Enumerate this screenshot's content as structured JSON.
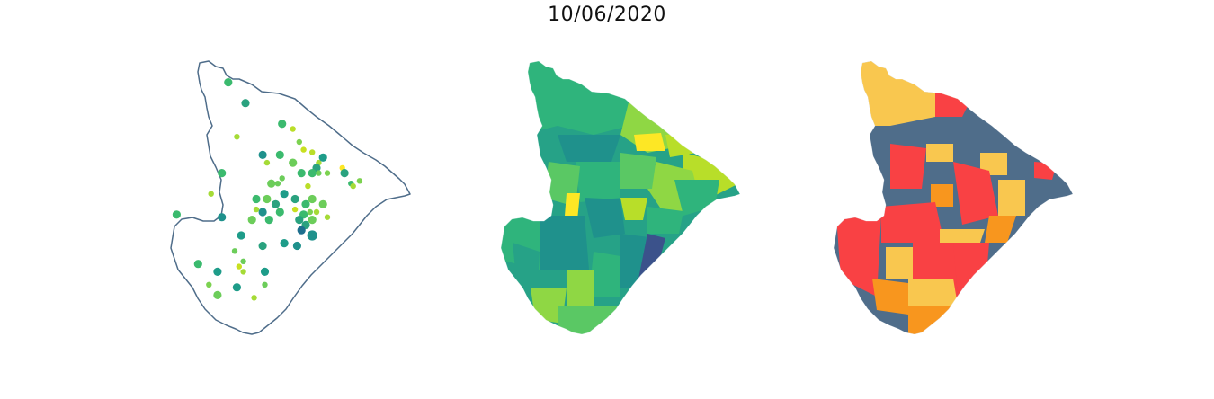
{
  "figure": {
    "title": "10/06/2020"
  },
  "maps": [
    {
      "type": "point-map",
      "outline_color": "#4f6d8a",
      "points": [
        {
          "lng": 0.2,
          "lat": 0.95,
          "size": 2,
          "color": "#3bba6e"
        },
        {
          "lng": 0.28,
          "lat": 0.87,
          "size": 2,
          "color": "#2aa27f"
        },
        {
          "lng": 0.45,
          "lat": 0.79,
          "size": 2,
          "color": "#3bba6e"
        },
        {
          "lng": 0.24,
          "lat": 0.74,
          "size": 1,
          "color": "#a5db36"
        },
        {
          "lng": 0.5,
          "lat": 0.77,
          "size": 1,
          "color": "#bade28"
        },
        {
          "lng": 0.53,
          "lat": 0.72,
          "size": 1,
          "color": "#7cd250"
        },
        {
          "lng": 0.55,
          "lat": 0.69,
          "size": 1,
          "color": "#c8e020"
        },
        {
          "lng": 0.59,
          "lat": 0.68,
          "size": 1,
          "color": "#bade28"
        },
        {
          "lng": 0.62,
          "lat": 0.64,
          "size": 1,
          "color": "#a5db36"
        },
        {
          "lng": 0.61,
          "lat": 0.62,
          "size": 2,
          "color": "#2aa27f"
        },
        {
          "lng": 0.64,
          "lat": 0.66,
          "size": 2,
          "color": "#1e9c89"
        },
        {
          "lng": 0.36,
          "lat": 0.67,
          "size": 2,
          "color": "#1f918c"
        },
        {
          "lng": 0.44,
          "lat": 0.67,
          "size": 2,
          "color": "#3bba6e"
        },
        {
          "lng": 0.38,
          "lat": 0.64,
          "size": 1,
          "color": "#a5db36"
        },
        {
          "lng": 0.5,
          "lat": 0.64,
          "size": 2,
          "color": "#6ccd5a"
        },
        {
          "lng": 0.54,
          "lat": 0.6,
          "size": 2,
          "color": "#3bba6e"
        },
        {
          "lng": 0.59,
          "lat": 0.6,
          "size": 2,
          "color": "#3bba6e"
        },
        {
          "lng": 0.62,
          "lat": 0.6,
          "size": 1,
          "color": "#6ccd5a"
        },
        {
          "lng": 0.66,
          "lat": 0.6,
          "size": 1,
          "color": "#7cd250"
        },
        {
          "lng": 0.73,
          "lat": 0.62,
          "size": 1,
          "color": "#fde725"
        },
        {
          "lng": 0.74,
          "lat": 0.6,
          "size": 2,
          "color": "#2aa27f"
        },
        {
          "lng": 0.77,
          "lat": 0.56,
          "size": 1,
          "color": "#3bba6e"
        },
        {
          "lng": 0.81,
          "lat": 0.57,
          "size": 1,
          "color": "#7cd250"
        },
        {
          "lng": 0.17,
          "lat": 0.6,
          "size": 2,
          "color": "#3bba6e"
        },
        {
          "lng": 0.45,
          "lat": 0.58,
          "size": 1,
          "color": "#6ccd5a"
        },
        {
          "lng": 0.4,
          "lat": 0.56,
          "size": 2,
          "color": "#6ccd5a"
        },
        {
          "lng": 0.43,
          "lat": 0.56,
          "size": 1,
          "color": "#6ccd5a"
        },
        {
          "lng": 0.57,
          "lat": 0.55,
          "size": 1,
          "color": "#bade28"
        },
        {
          "lng": 0.78,
          "lat": 0.55,
          "size": 1,
          "color": "#a5db36"
        },
        {
          "lng": 0.12,
          "lat": 0.52,
          "size": 1,
          "color": "#a5db36"
        },
        {
          "lng": 0.33,
          "lat": 0.5,
          "size": 2,
          "color": "#3bba6e"
        },
        {
          "lng": 0.38,
          "lat": 0.5,
          "size": 2,
          "color": "#6ccd5a"
        },
        {
          "lng": 0.42,
          "lat": 0.48,
          "size": 2,
          "color": "#2aa27f"
        },
        {
          "lng": 0.46,
          "lat": 0.52,
          "size": 2,
          "color": "#1e9c89"
        },
        {
          "lng": 0.51,
          "lat": 0.5,
          "size": 2,
          "color": "#2aa27f"
        },
        {
          "lng": 0.56,
          "lat": 0.48,
          "size": 2,
          "color": "#3bba6e"
        },
        {
          "lng": 0.59,
          "lat": 0.5,
          "size": 2,
          "color": "#6ccd5a"
        },
        {
          "lng": 0.64,
          "lat": 0.48,
          "size": 2,
          "color": "#6ccd5a"
        },
        {
          "lng": 0.33,
          "lat": 0.46,
          "size": 1,
          "color": "#a5db36"
        },
        {
          "lng": 0.36,
          "lat": 0.45,
          "size": 2,
          "color": "#1f918c"
        },
        {
          "lng": 0.44,
          "lat": 0.45,
          "size": 2,
          "color": "#3bba6e"
        },
        {
          "lng": 0.51,
          "lat": 0.46,
          "size": 1,
          "color": "#c8e020"
        },
        {
          "lng": 0.55,
          "lat": 0.44,
          "size": 2,
          "color": "#3bba6e"
        },
        {
          "lng": 0.58,
          "lat": 0.45,
          "size": 1,
          "color": "#7cd250"
        },
        {
          "lng": 0.61,
          "lat": 0.45,
          "size": 1,
          "color": "#a5db36"
        },
        {
          "lng": -0.04,
          "lat": 0.44,
          "size": 2,
          "color": "#3bba6e"
        },
        {
          "lng": 0.17,
          "lat": 0.43,
          "size": 2,
          "color": "#1f918c"
        },
        {
          "lng": 0.31,
          "lat": 0.42,
          "size": 2,
          "color": "#6ccd5a"
        },
        {
          "lng": 0.39,
          "lat": 0.42,
          "size": 2,
          "color": "#3bba6e"
        },
        {
          "lng": 0.53,
          "lat": 0.42,
          "size": 2,
          "color": "#2aa27f"
        },
        {
          "lng": 0.56,
          "lat": 0.4,
          "size": 2,
          "color": "#2aa27f"
        },
        {
          "lng": 0.59,
          "lat": 0.42,
          "size": 2,
          "color": "#6ccd5a"
        },
        {
          "lng": 0.66,
          "lat": 0.43,
          "size": 1,
          "color": "#a5db36"
        },
        {
          "lng": 0.54,
          "lat": 0.38,
          "size": 2,
          "color": "#1e6f8e"
        },
        {
          "lng": 0.59,
          "lat": 0.36,
          "size": 3,
          "color": "#1f918c"
        },
        {
          "lng": 0.26,
          "lat": 0.36,
          "size": 2,
          "color": "#1e9c89"
        },
        {
          "lng": 0.36,
          "lat": 0.32,
          "size": 2,
          "color": "#2aa27f"
        },
        {
          "lng": 0.46,
          "lat": 0.33,
          "size": 2,
          "color": "#1e9c89"
        },
        {
          "lng": 0.52,
          "lat": 0.32,
          "size": 2,
          "color": "#1f918c"
        },
        {
          "lng": 0.23,
          "lat": 0.3,
          "size": 1,
          "color": "#6ccd5a"
        },
        {
          "lng": 0.27,
          "lat": 0.26,
          "size": 1,
          "color": "#6ccd5a"
        },
        {
          "lng": 0.06,
          "lat": 0.25,
          "size": 2,
          "color": "#3bba6e"
        },
        {
          "lng": 0.25,
          "lat": 0.24,
          "size": 1,
          "color": "#c8e020"
        },
        {
          "lng": 0.15,
          "lat": 0.22,
          "size": 2,
          "color": "#1e9c89"
        },
        {
          "lng": 0.27,
          "lat": 0.22,
          "size": 1,
          "color": "#a5db36"
        },
        {
          "lng": 0.37,
          "lat": 0.22,
          "size": 2,
          "color": "#1e9c89"
        },
        {
          "lng": 0.11,
          "lat": 0.17,
          "size": 1,
          "color": "#7cd250"
        },
        {
          "lng": 0.24,
          "lat": 0.16,
          "size": 2,
          "color": "#1e9c89"
        },
        {
          "lng": 0.37,
          "lat": 0.17,
          "size": 1,
          "color": "#6ccd5a"
        },
        {
          "lng": 0.15,
          "lat": 0.13,
          "size": 2,
          "color": "#6ccd5a"
        },
        {
          "lng": 0.32,
          "lat": 0.12,
          "size": 1,
          "color": "#a5db36"
        }
      ]
    },
    {
      "type": "choropleth",
      "palette": [
        "#46337e",
        "#3b528b",
        "#1f918c",
        "#26a287",
        "#2fb47c",
        "#5ac864",
        "#8fd744",
        "#b8de29",
        "#fde725"
      ]
    },
    {
      "type": "choropleth",
      "palette": [
        "#4f6d8a",
        "#f94144",
        "#f8961e",
        "#f9c74f"
      ]
    }
  ]
}
